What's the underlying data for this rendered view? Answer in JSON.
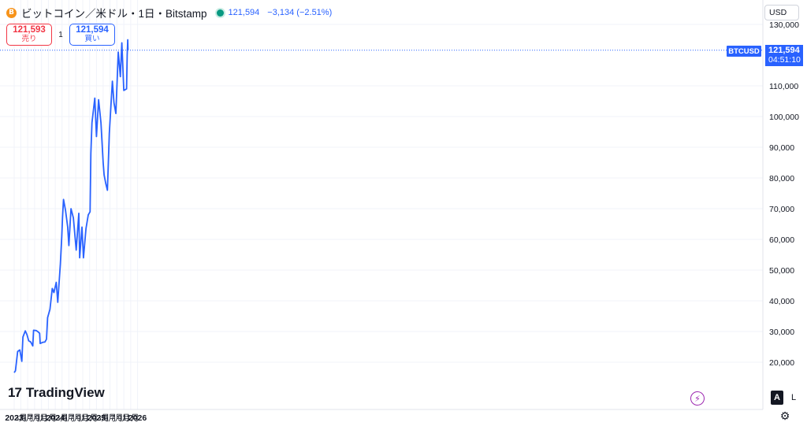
{
  "header": {
    "coin_icon_glyph": "B",
    "symbol_title": "ビットコイン／米ドル・1日・Bitstamp",
    "price": "121,594",
    "change": "−3,134 (−2.51%)"
  },
  "trade": {
    "sell_price": "121,593",
    "sell_label": "売り",
    "spread": "1",
    "buy_price": "121,594",
    "buy_label": "買い"
  },
  "currency": "USD",
  "last_price_label": {
    "symbol": "BTCUSD",
    "price": "121,594",
    "countdown": "04:51:10"
  },
  "logo": {
    "mark": "17",
    "text": "TradingView"
  },
  "bottom_controls": {
    "auto_label": "A",
    "log_label": "L",
    "lightning_icon": "⚡",
    "settings_icon": "⚙"
  },
  "colors": {
    "line": "#2962ff",
    "price_line": "#2962ff",
    "grid": "#f0f3fa",
    "sell": "#f23645",
    "buy": "#2962ff"
  },
  "chart_data": {
    "type": "line",
    "series": [
      {
        "name": "BTCUSD",
        "x": [
          "2023-01-01",
          "2023-01-12",
          "2023-02-01",
          "2023-02-20",
          "2023-03-10",
          "2023-03-20",
          "2023-04-10",
          "2023-05-10",
          "2023-06-15",
          "2023-06-22",
          "2023-07-15",
          "2023-08-15",
          "2023-08-20",
          "2023-09-15",
          "2023-10-15",
          "2023-10-25",
          "2023-11-15",
          "2023-12-05",
          "2023-12-20",
          "2024-01-10",
          "2024-01-23",
          "2024-02-15",
          "2024-02-28",
          "2024-03-05",
          "2024-03-14",
          "2024-04-01",
          "2024-04-20",
          "2024-05-01",
          "2024-05-20",
          "2024-06-10",
          "2024-07-05",
          "2024-07-28",
          "2024-08-05",
          "2024-08-25",
          "2024-09-07",
          "2024-09-30",
          "2024-10-20",
          "2024-11-05",
          "2024-11-12",
          "2024-11-22",
          "2024-12-17",
          "2025-01-01",
          "2025-01-20",
          "2025-02-10",
          "2025-03-01",
          "2025-03-10",
          "2025-04-08",
          "2025-04-25",
          "2025-05-22",
          "2025-06-05",
          "2025-06-22",
          "2025-07-14",
          "2025-08-01",
          "2025-08-14",
          "2025-09-01",
          "2025-09-25",
          "2025-10-01",
          "2025-10-06",
          "2025-10-08"
        ],
        "y": [
          16600,
          17200,
          23500,
          24000,
          20300,
          28200,
          30200,
          27000,
          25300,
          30400,
          30300,
          29400,
          26100,
          26500,
          27500,
          34500,
          37200,
          44000,
          42700,
          46000,
          39500,
          52000,
          61000,
          67000,
          73000,
          69500,
          64000,
          58000,
          70000,
          67000,
          56500,
          68500,
          54000,
          64000,
          54000,
          63500,
          68000,
          69000,
          88000,
          98000,
          106000,
          93500,
          105500,
          98000,
          85000,
          81000,
          76000,
          94500,
          111500,
          104500,
          101000,
          121000,
          113000,
          124000,
          108500,
          109000,
          120000,
          125000,
          121594
        ]
      }
    ],
    "xticks": [
      "2023",
      "3月",
      "5月",
      "7月",
      "9月",
      "11月",
      "2024",
      "3月",
      "5月",
      "7月",
      "9月",
      "11月",
      "2025",
      "3月",
      "5月",
      "7月",
      "9月",
      "11月",
      "2026"
    ],
    "yticks": [
      "20,000",
      "30,000",
      "40,000",
      "50,000",
      "60,000",
      "70,000",
      "80,000",
      "90,000",
      "100,000",
      "110,000",
      "130,000"
    ],
    "ylim": [
      10000,
      131000
    ],
    "last_price": 121594,
    "grid": true,
    "legend": "top-left"
  }
}
